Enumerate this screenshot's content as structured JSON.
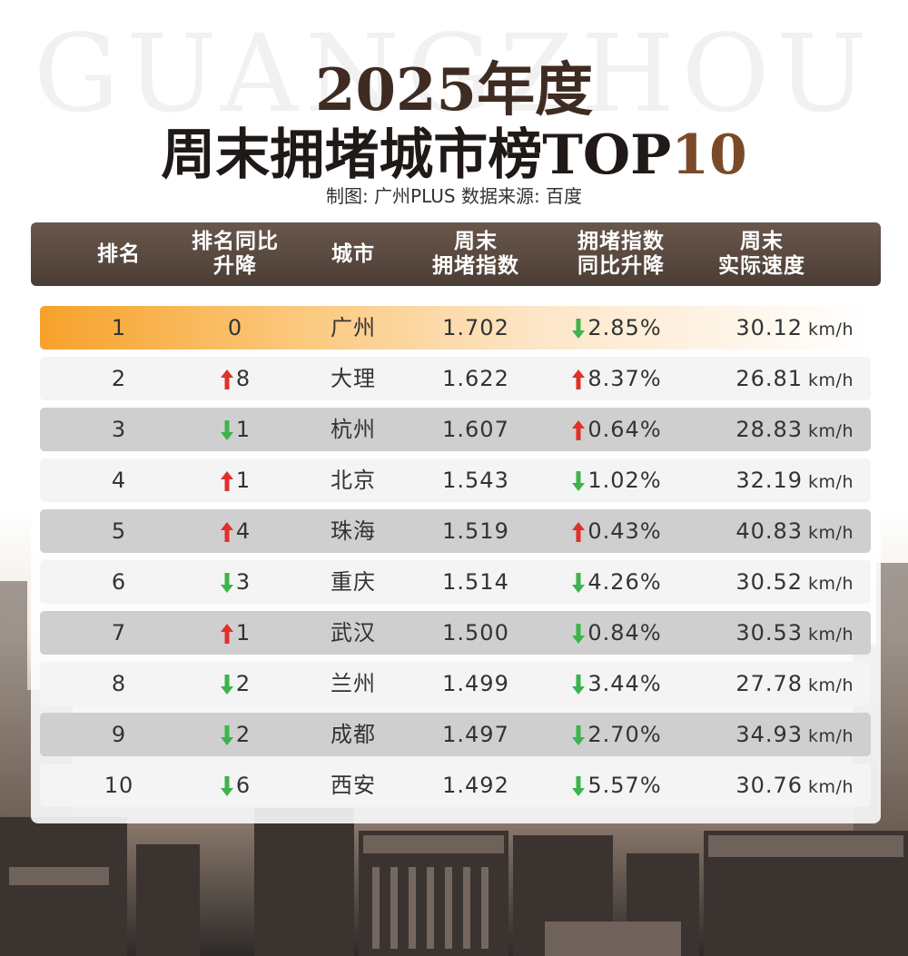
{
  "watermark": "GUANGZHOU",
  "title_line1": "2025年度",
  "title_line2_main": "周末拥堵城市榜TOP",
  "title_line2_hl": "10",
  "credit": "制图: 广州PLUS   数据来源: 百度",
  "colors": {
    "header": "#5a4a40",
    "up": "#e0302a",
    "down": "#3cb44a",
    "top_row": "#f7a12a"
  },
  "headers": {
    "rank": "排名",
    "rank_change": [
      "排名同比",
      "升降"
    ],
    "city": "城市",
    "index": [
      "周末",
      "拥堵指数"
    ],
    "index_change": [
      "拥堵指数",
      "同比升降"
    ],
    "speed": [
      "周末",
      "实际速度"
    ]
  },
  "unit": "km/h",
  "rows": [
    {
      "rank": "1",
      "dir": "none",
      "change": "0",
      "city": "广州",
      "index": "1.702",
      "pdir": "down",
      "pct": "2.85%",
      "speed": "30.12"
    },
    {
      "rank": "2",
      "dir": "up",
      "change": "8",
      "city": "大理",
      "index": "1.622",
      "pdir": "up",
      "pct": "8.37%",
      "speed": "26.81"
    },
    {
      "rank": "3",
      "dir": "down",
      "change": "1",
      "city": "杭州",
      "index": "1.607",
      "pdir": "up",
      "pct": "0.64%",
      "speed": "28.83"
    },
    {
      "rank": "4",
      "dir": "up",
      "change": "1",
      "city": "北京",
      "index": "1.543",
      "pdir": "down",
      "pct": "1.02%",
      "speed": "32.19"
    },
    {
      "rank": "5",
      "dir": "up",
      "change": "4",
      "city": "珠海",
      "index": "1.519",
      "pdir": "up",
      "pct": "0.43%",
      "speed": "40.83"
    },
    {
      "rank": "6",
      "dir": "down",
      "change": "3",
      "city": "重庆",
      "index": "1.514",
      "pdir": "down",
      "pct": "4.26%",
      "speed": "30.52"
    },
    {
      "rank": "7",
      "dir": "up",
      "change": "1",
      "city": "武汉",
      "index": "1.500",
      "pdir": "down",
      "pct": "0.84%",
      "speed": "30.53"
    },
    {
      "rank": "8",
      "dir": "down",
      "change": "2",
      "city": "兰州",
      "index": "1.499",
      "pdir": "down",
      "pct": "3.44%",
      "speed": "27.78"
    },
    {
      "rank": "9",
      "dir": "down",
      "change": "2",
      "city": "成都",
      "index": "1.497",
      "pdir": "down",
      "pct": "2.70%",
      "speed": "34.93"
    },
    {
      "rank": "10",
      "dir": "down",
      "change": "6",
      "city": "西安",
      "index": "1.492",
      "pdir": "down",
      "pct": "5.57%",
      "speed": "30.76"
    }
  ]
}
